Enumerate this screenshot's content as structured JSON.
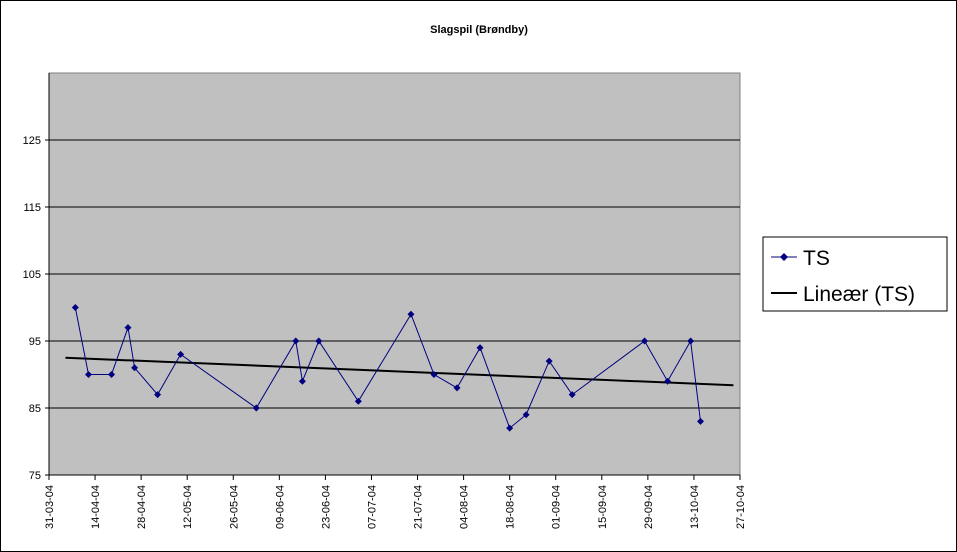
{
  "chart_data": {
    "type": "line",
    "title": "Slagspil (Brøndby)",
    "xlabel": "",
    "ylabel": "",
    "x_ticks": [
      "31-03-04",
      "14-04-04",
      "28-04-04",
      "12-05-04",
      "26-05-04",
      "09-06-04",
      "23-06-04",
      "07-07-04",
      "21-07-04",
      "04-08-04",
      "18-08-04",
      "01-09-04",
      "15-09-04",
      "29-09-04",
      "13-10-04",
      "27-10-04"
    ],
    "xlim": [
      "2004-03-31",
      "2004-10-27"
    ],
    "ylim": [
      75,
      135
    ],
    "y_ticks": [
      75,
      85,
      95,
      105,
      115,
      125
    ],
    "grid": "horizontal",
    "plot_background": "#c0c0c0",
    "legend_position": "right",
    "series": [
      {
        "name": "TS",
        "color": "#000080",
        "marker": "diamond",
        "points": [
          {
            "x": "2004-04-08",
            "y": 100
          },
          {
            "x": "2004-04-12",
            "y": 90
          },
          {
            "x": "2004-04-19",
            "y": 90
          },
          {
            "x": "2004-04-24",
            "y": 97
          },
          {
            "x": "2004-04-26",
            "y": 91
          },
          {
            "x": "2004-05-03",
            "y": 87
          },
          {
            "x": "2004-05-10",
            "y": 93
          },
          {
            "x": "2004-06-02",
            "y": 85
          },
          {
            "x": "2004-06-14",
            "y": 95
          },
          {
            "x": "2004-06-16",
            "y": 89
          },
          {
            "x": "2004-06-21",
            "y": 95
          },
          {
            "x": "2004-07-03",
            "y": 86
          },
          {
            "x": "2004-07-19",
            "y": 99
          },
          {
            "x": "2004-07-26",
            "y": 90
          },
          {
            "x": "2004-08-02",
            "y": 88
          },
          {
            "x": "2004-08-09",
            "y": 94
          },
          {
            "x": "2004-08-18",
            "y": 82
          },
          {
            "x": "2004-08-23",
            "y": 84
          },
          {
            "x": "2004-08-30",
            "y": 92
          },
          {
            "x": "2004-09-06",
            "y": 87
          },
          {
            "x": "2004-09-28",
            "y": 95
          },
          {
            "x": "2004-10-05",
            "y": 89
          },
          {
            "x": "2004-10-12",
            "y": 95
          },
          {
            "x": "2004-10-15",
            "y": 83
          }
        ]
      },
      {
        "name": "Lineær (TS)",
        "color": "#000000",
        "marker": "none",
        "points": [
          {
            "x": "2004-04-05",
            "y": 92.5
          },
          {
            "x": "2004-10-25",
            "y": 88.4
          }
        ]
      }
    ]
  }
}
